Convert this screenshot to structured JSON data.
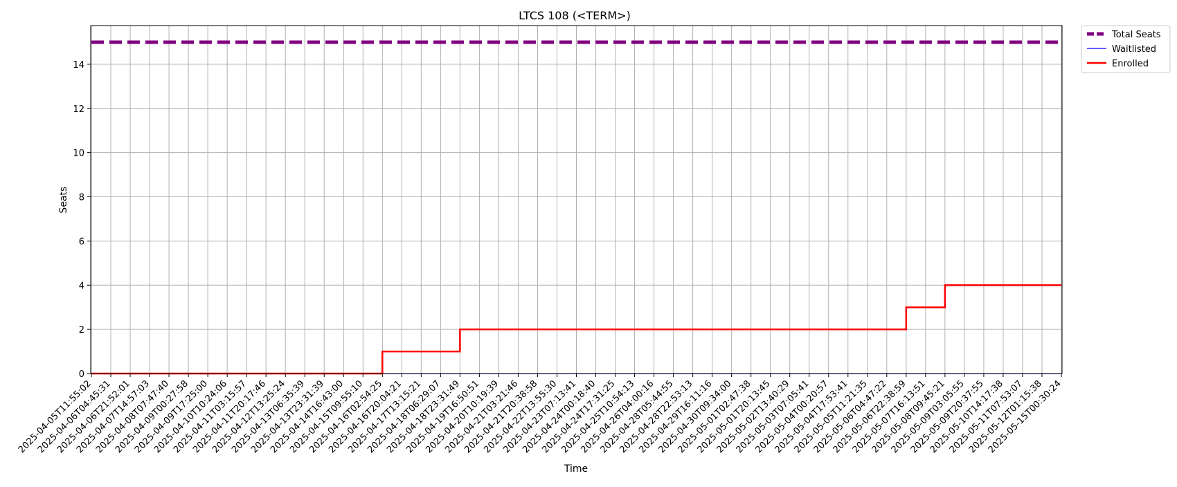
{
  "chart_data": {
    "type": "line",
    "title": "LTCS 108 (<TERM>)",
    "xlabel": "Time",
    "ylabel": "Seats",
    "ylim": [
      0,
      15.75
    ],
    "yticks": [
      0,
      2,
      4,
      6,
      8,
      10,
      12,
      14
    ],
    "grid": true,
    "legend_position": "outside-top-right",
    "x": [
      "2025-04-05T11:55:02",
      "2025-04-06T04:45:31",
      "2025-04-06T21:52:01",
      "2025-04-07T14:57:03",
      "2025-04-08T07:47:40",
      "2025-04-09T00:27:58",
      "2025-04-09T17:25:00",
      "2025-04-10T10:24:06",
      "2025-04-11T03:15:57",
      "2025-04-11T20:17:46",
      "2025-04-12T13:25:24",
      "2025-04-13T06:35:39",
      "2025-04-13T23:31:39",
      "2025-04-14T16:43:00",
      "2025-04-15T09:55:10",
      "2025-04-16T02:54:25",
      "2025-04-16T20:04:21",
      "2025-04-17T13:15:21",
      "2025-04-18T06:29:07",
      "2025-04-18T23:31:49",
      "2025-04-19T16:50:51",
      "2025-04-20T10:19:39",
      "2025-04-21T03:21:46",
      "2025-04-21T20:38:58",
      "2025-04-22T13:55:30",
      "2025-04-23T07:13:41",
      "2025-04-24T00:18:40",
      "2025-04-24T17:31:25",
      "2025-04-25T10:54:13",
      "2025-04-26T04:00:16",
      "2025-04-28T05:44:55",
      "2025-04-28T22:53:13",
      "2025-04-29T16:11:16",
      "2025-04-30T09:34:00",
      "2025-05-01T02:47:38",
      "2025-05-01T20:13:45",
      "2025-05-02T13:40:29",
      "2025-05-03T07:05:41",
      "2025-05-04T00:20:57",
      "2025-05-04T17:53:41",
      "2025-05-05T11:21:35",
      "2025-05-06T04:47:22",
      "2025-05-06T22:38:59",
      "2025-05-07T16:13:51",
      "2025-05-08T09:45:21",
      "2025-05-09T03:05:55",
      "2025-05-09T20:37:55",
      "2025-05-10T14:17:38",
      "2025-05-11T07:53:07",
      "2025-05-12T01:15:38",
      "2025-05-15T00:30:24"
    ],
    "series": [
      {
        "name": "Total Seats",
        "color": "#800080",
        "style": "dashed",
        "values": [
          15,
          15,
          15,
          15,
          15,
          15,
          15,
          15,
          15,
          15,
          15,
          15,
          15,
          15,
          15,
          15,
          15,
          15,
          15,
          15,
          15,
          15,
          15,
          15,
          15,
          15,
          15,
          15,
          15,
          15,
          15,
          15,
          15,
          15,
          15,
          15,
          15,
          15,
          15,
          15,
          15,
          15,
          15,
          15,
          15,
          15,
          15,
          15,
          15,
          15,
          15
        ]
      },
      {
        "name": "Waitlisted",
        "color": "#0000ff",
        "style": "solid",
        "values": [
          0,
          0,
          0,
          0,
          0,
          0,
          0,
          0,
          0,
          0,
          0,
          0,
          0,
          0,
          0,
          0,
          0,
          0,
          0,
          0,
          0,
          0,
          0,
          0,
          0,
          0,
          0,
          0,
          0,
          0,
          0,
          0,
          0,
          0,
          0,
          0,
          0,
          0,
          0,
          0,
          0,
          0,
          0,
          0,
          0,
          0,
          0,
          0,
          0,
          0,
          0
        ]
      },
      {
        "name": "Enrolled",
        "color": "#ff0000",
        "style": "solid",
        "values": [
          0,
          0,
          0,
          0,
          0,
          0,
          0,
          0,
          0,
          0,
          0,
          0,
          0,
          0,
          0,
          1,
          1,
          1,
          1,
          2,
          2,
          2,
          2,
          2,
          2,
          2,
          2,
          2,
          2,
          2,
          2,
          2,
          2,
          2,
          2,
          2,
          2,
          2,
          2,
          2,
          2,
          2,
          3,
          3,
          4,
          4,
          4,
          4,
          4,
          4,
          4
        ]
      }
    ]
  }
}
